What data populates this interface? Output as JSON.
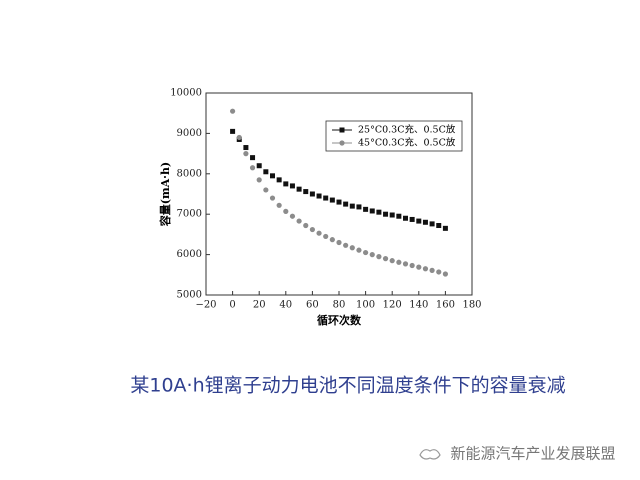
{
  "chart_data": {
    "type": "scatter",
    "ylabel": "容量(mA·h)",
    "xlabel": "循环次数",
    "x": [
      0,
      5,
      10,
      15,
      20,
      25,
      30,
      35,
      40,
      45,
      50,
      55,
      60,
      65,
      70,
      75,
      80,
      85,
      90,
      95,
      100,
      105,
      110,
      115,
      120,
      125,
      130,
      135,
      140,
      145,
      150,
      155,
      160
    ],
    "series": [
      {
        "name": "25°C0.3C充、0.5C放",
        "color": "#111111",
        "marker": "square",
        "values": [
          9050,
          8850,
          8650,
          8400,
          8200,
          8050,
          7950,
          7850,
          7750,
          7700,
          7620,
          7560,
          7500,
          7450,
          7400,
          7350,
          7300,
          7250,
          7200,
          7180,
          7120,
          7080,
          7050,
          7000,
          6980,
          6950,
          6900,
          6870,
          6830,
          6800,
          6760,
          6720,
          6650
        ]
      },
      {
        "name": "45°C0.3C充、0.5C放",
        "color": "#8c8c8c",
        "marker": "circle",
        "values": [
          9550,
          8900,
          8500,
          8150,
          7850,
          7600,
          7400,
          7220,
          7070,
          6950,
          6830,
          6720,
          6620,
          6530,
          6450,
          6370,
          6300,
          6230,
          6170,
          6110,
          6050,
          6000,
          5950,
          5900,
          5850,
          5810,
          5770,
          5730,
          5690,
          5650,
          5610,
          5570,
          5520
        ]
      }
    ],
    "xlim": [
      -20,
      180
    ],
    "xticks": [
      {
        "value": -20,
        "label": "−20"
      },
      0,
      20,
      40,
      60,
      80,
      100,
      120,
      140,
      160,
      180
    ],
    "ylim": [
      5000,
      10000
    ],
    "yticks": [
      5000,
      6000,
      7000,
      8000,
      9000,
      10000
    ],
    "grid": false,
    "legend": "upper right"
  },
  "caption": "某10A·h锂离子动力电池不同温度条件下的容量衰减",
  "watermark": "新能源汽车产业发展联盟"
}
